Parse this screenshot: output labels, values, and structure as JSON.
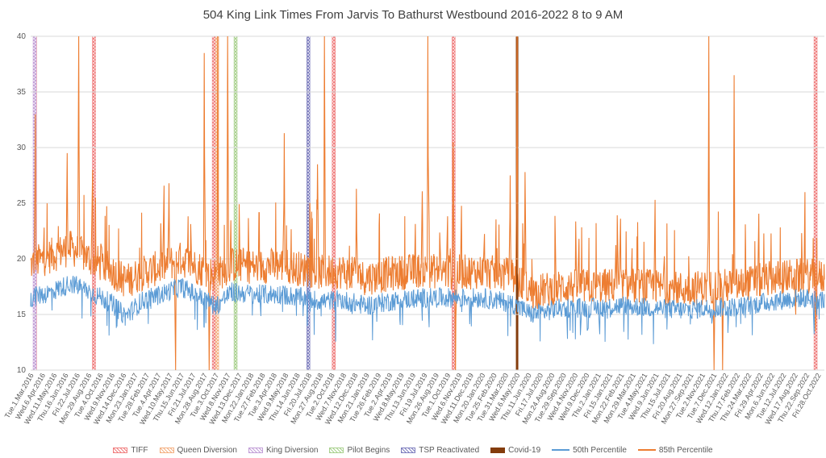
{
  "chart_data": {
    "type": "line",
    "title": "504 King Link Times From Jarvis To Bathurst Westbound 2016-2022 8 to 9 AM",
    "ylim": [
      10,
      40
    ],
    "yticks": [
      10,
      15,
      20,
      25,
      30,
      35,
      40
    ],
    "x_range": [
      "2016-03-01",
      "2022-10-06"
    ],
    "grid": true,
    "legend_position": "bottom",
    "x_tick_labels": [
      "Tue.1.Mar.2016",
      "Wed.6.Apr.2016",
      "Wed.11.May.2016",
      "Thu.16.Jun.2016",
      "Fri.22.Jul.2016",
      "Mon.29.Aug.2016",
      "Tue.4.Oct.2016",
      "Wed.9.Nov.2016",
      "Wed.14.Dec.2016",
      "Mon.23.Jan.2017",
      "Tue.28.Feb.2017",
      "Tue.4.Apr.2017",
      "Wed.10.May.2017",
      "Thu.15.Jun.2017",
      "Fri.21.Jul.2017",
      "Mon.28.Aug.2017",
      "Tue.3.Oct.2017",
      "Wed.8.Nov.2017",
      "Wed.13.Dec.2017",
      "Mon.22.Jan.2018",
      "Tue.27.Feb.2018",
      "Tue.3.Apr.2018",
      "Wed.9.May.2018",
      "Thu.14.Jun.2018",
      "Fri.20.Jul.2018",
      "Mon.27.Aug.2018",
      "Tue.2.Oct.2018",
      "Wed.7.Nov.2018",
      "Wed.12.Dec.2018",
      "Mon.21.Jan.2019",
      "Tue.26.Feb.2019",
      "Tue.2.Apr.2019",
      "Wed.8.May.2019",
      "Thu.13.Jun.2019",
      "Fri.19.Jul.2019",
      "Mon.26.Aug.2019",
      "Tue.1.Oct.2019",
      "Wed.6.Nov.2019",
      "Wed.11.Dec.2019",
      "Mon.20.Jan.2020",
      "Tue.25.Feb.2020",
      "Tue.31.Mar.2020",
      "Wed.6.May.2020",
      "Thu.11.Jun.2020",
      "Fri.17.Jul.2020",
      "Mon.24.Aug.2020",
      "Tue.29.Sep.2020",
      "Wed.4.Nov.2020",
      "Wed.9.Dec.2020",
      "Thu.2.Jan.2021",
      "Fri.15.Jan.2021",
      "Mon.22.Feb.2021",
      "Mon.29.Mar.2021",
      "Tue.4.May.2021",
      "Wed.9.Jun.2021",
      "Thu.15.Jul.2021",
      "Fri.20.Aug.2021",
      "Mon.27.Sep.2021",
      "Tue.2.Nov.2021",
      "Tue.7.Dec.2021",
      "Wed.12.Jan.2022",
      "Thu.17.Feb.2022",
      "Thu.24.Mar.2022",
      "Fri.29.Apr.2022",
      "Mon.6.Jun.2022",
      "Tue.12.Jul.2022",
      "Wed.17.Aug.2022",
      "Thu.22.Sep.2022",
      "Fri.28.Oct.2022"
    ],
    "events": [
      {
        "name": "TIFF",
        "color": "#f08080",
        "dates": [
          "2016-03-13",
          "2016-09-08",
          "2017-09-07",
          "2018-09-06",
          "2019-09-05",
          "2022-09-08"
        ]
      },
      {
        "name": "Queen Diversion",
        "color": "#f4b183",
        "dates": [
          "2017-09-17"
        ]
      },
      {
        "name": "King Diversion",
        "color": "#c3a0d8",
        "dates": [
          "2016-03-12"
        ]
      },
      {
        "name": "Pilot Begins",
        "color": "#a9d18e",
        "dates": [
          "2017-11-12"
        ]
      },
      {
        "name": "TSP Reactivated",
        "color": "#7f7fbf",
        "dates": [
          "2018-06-21"
        ]
      },
      {
        "name": "Covid-19",
        "color": "#843c0c",
        "dates": [
          "2020-03-17"
        ]
      }
    ],
    "series": [
      {
        "name": "50th Percentile",
        "color": "#5b9bd5",
        "points": [
          [
            "2016-03-01",
            16.5
          ],
          [
            "2016-05-01",
            17.0
          ],
          [
            "2016-07-01",
            17.8
          ],
          [
            "2016-09-01",
            17.0
          ],
          [
            "2016-11-01",
            16.0
          ],
          [
            "2016-12-15",
            14.8
          ],
          [
            "2017-02-01",
            16.2
          ],
          [
            "2017-04-01",
            16.8
          ],
          [
            "2017-06-01",
            17.5
          ],
          [
            "2017-08-01",
            16.5
          ],
          [
            "2017-09-15",
            15.8
          ],
          [
            "2017-11-01",
            17.0
          ],
          [
            "2018-01-15",
            16.8
          ],
          [
            "2018-04-01",
            16.8
          ],
          [
            "2018-06-01",
            16.5
          ],
          [
            "2018-08-01",
            16.2
          ],
          [
            "2018-10-01",
            16.3
          ],
          [
            "2018-12-15",
            15.8
          ],
          [
            "2019-03-01",
            16.2
          ],
          [
            "2019-06-01",
            16.5
          ],
          [
            "2019-09-01",
            16.5
          ],
          [
            "2019-12-01",
            16.5
          ],
          [
            "2020-03-01",
            16.0
          ],
          [
            "2020-05-01",
            15.0
          ],
          [
            "2020-08-01",
            15.6
          ],
          [
            "2020-11-01",
            15.6
          ],
          [
            "2021-02-01",
            15.8
          ],
          [
            "2021-05-01",
            15.6
          ],
          [
            "2021-08-01",
            15.4
          ],
          [
            "2021-11-01",
            15.6
          ],
          [
            "2022-02-01",
            15.7
          ],
          [
            "2022-05-01",
            16.2
          ],
          [
            "2022-08-01",
            16.5
          ],
          [
            "2022-10-28",
            16.2
          ]
        ]
      },
      {
        "name": "85th Percentile",
        "color": "#ed7d31",
        "points": [
          [
            "2016-03-01",
            19.0
          ],
          [
            "2016-05-01",
            19.8
          ],
          [
            "2016-07-01",
            20.5
          ],
          [
            "2016-09-01",
            19.5
          ],
          [
            "2016-11-01",
            18.5
          ],
          [
            "2016-12-15",
            17.5
          ],
          [
            "2017-02-01",
            18.2
          ],
          [
            "2017-04-01",
            18.8
          ],
          [
            "2017-06-01",
            19.5
          ],
          [
            "2017-08-01",
            18.6
          ],
          [
            "2017-09-15",
            18.0
          ],
          [
            "2017-11-01",
            19.0
          ],
          [
            "2018-01-15",
            18.8
          ],
          [
            "2018-04-01",
            19.0
          ],
          [
            "2018-06-01",
            18.6
          ],
          [
            "2018-08-01",
            18.3
          ],
          [
            "2018-10-01",
            18.4
          ],
          [
            "2018-12-15",
            17.8
          ],
          [
            "2019-03-01",
            18.2
          ],
          [
            "2019-06-01",
            18.5
          ],
          [
            "2019-09-01",
            18.3
          ],
          [
            "2019-12-01",
            18.4
          ],
          [
            "2020-03-01",
            18.0
          ],
          [
            "2020-05-01",
            16.5
          ],
          [
            "2020-08-01",
            17.0
          ],
          [
            "2020-11-01",
            17.0
          ],
          [
            "2021-02-01",
            17.2
          ],
          [
            "2021-05-01",
            17.0
          ],
          [
            "2021-08-01",
            16.8
          ],
          [
            "2021-11-01",
            17.0
          ],
          [
            "2022-02-01",
            17.2
          ],
          [
            "2022-05-01",
            17.8
          ],
          [
            "2022-08-01",
            18.0
          ],
          [
            "2022-10-28",
            17.8
          ]
        ],
        "spikes": [
          [
            "2016-03-15",
            33.0
          ],
          [
            "2016-06-20",
            29.5
          ],
          [
            "2016-07-25",
            40
          ],
          [
            "2016-09-05",
            28.0
          ],
          [
            "2017-04-25",
            26.8
          ],
          [
            "2017-05-15",
            10
          ],
          [
            "2017-08-10",
            38.5
          ],
          [
            "2017-08-25",
            10
          ],
          [
            "2017-09-20",
            40
          ],
          [
            "2017-10-20",
            40
          ],
          [
            "2018-04-10",
            31.3
          ],
          [
            "2018-07-20",
            28.5
          ],
          [
            "2018-08-10",
            40
          ],
          [
            "2018-11-15",
            26.3
          ],
          [
            "2019-06-20",
            40
          ],
          [
            "2019-09-05",
            30.5
          ],
          [
            "2019-09-12",
            10
          ],
          [
            "2020-02-25",
            27.5
          ],
          [
            "2020-03-17",
            40
          ],
          [
            "2020-04-10",
            27.8
          ],
          [
            "2020-09-20",
            25.0
          ],
          [
            "2021-01-10",
            25.5
          ],
          [
            "2021-05-10",
            25.3
          ],
          [
            "2021-10-20",
            40
          ],
          [
            "2021-11-05",
            10
          ],
          [
            "2021-12-01",
            10
          ],
          [
            "2022-01-05",
            36.5
          ],
          [
            "2022-03-20",
            28.7
          ],
          [
            "2022-07-10",
            10
          ],
          [
            "2022-09-10",
            10
          ]
        ]
      }
    ]
  }
}
